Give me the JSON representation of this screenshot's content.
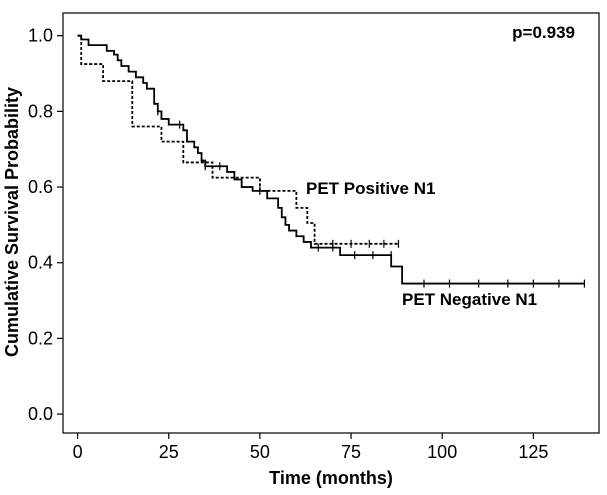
{
  "chart_data": {
    "type": "line",
    "subtype": "kaplan-meier step curve",
    "xlabel": "Time (months)",
    "ylabel": "Cumulative Survival Probability",
    "xlim": [
      -4,
      143
    ],
    "ylim": [
      -0.05,
      1.06
    ],
    "xticks": [
      0,
      25,
      50,
      75,
      100,
      125
    ],
    "yticks": [
      0.0,
      0.2,
      0.4,
      0.6,
      0.8,
      1.0
    ],
    "ytick_labels": [
      "0.0",
      "0.2",
      "0.4",
      "0.6",
      "0.8",
      "1.0"
    ],
    "grid": false,
    "annotations": {
      "pvalue": "p=0.939",
      "positive_label": "PET Positive N1",
      "negative_label": "PET Negative N1"
    },
    "series": [
      {
        "name": "PET Negative N1",
        "line_style": "solid",
        "steps": [
          [
            0,
            1.0
          ],
          [
            1,
            0.99
          ],
          [
            3,
            0.975
          ],
          [
            8,
            0.96
          ],
          [
            10,
            0.95
          ],
          [
            11,
            0.935
          ],
          [
            12,
            0.92
          ],
          [
            14,
            0.905
          ],
          [
            16,
            0.89
          ],
          [
            18,
            0.875
          ],
          [
            19,
            0.86
          ],
          [
            21,
            0.82
          ],
          [
            22,
            0.8
          ],
          [
            23,
            0.78
          ],
          [
            25,
            0.765
          ],
          [
            27,
            0.765
          ],
          [
            29,
            0.75
          ],
          [
            30,
            0.72
          ],
          [
            32,
            0.705
          ],
          [
            33,
            0.69
          ],
          [
            34,
            0.67
          ],
          [
            35,
            0.655
          ],
          [
            41,
            0.64
          ],
          [
            43,
            0.62
          ],
          [
            45,
            0.6
          ],
          [
            48,
            0.59
          ],
          [
            52,
            0.57
          ],
          [
            55,
            0.545
          ],
          [
            56,
            0.52
          ],
          [
            57,
            0.5
          ],
          [
            58,
            0.485
          ],
          [
            60,
            0.47
          ],
          [
            62,
            0.455
          ],
          [
            64,
            0.44
          ],
          [
            72,
            0.42
          ],
          [
            86,
            0.39
          ],
          [
            89,
            0.345
          ],
          [
            139,
            0.345
          ]
        ],
        "censored": [
          [
            22,
            0.8
          ],
          [
            28,
            0.765
          ],
          [
            35,
            0.655
          ],
          [
            39,
            0.655
          ],
          [
            50,
            0.59
          ],
          [
            66,
            0.44
          ],
          [
            70,
            0.44
          ],
          [
            76,
            0.42
          ],
          [
            81,
            0.42
          ],
          [
            86,
            0.42
          ],
          [
            95,
            0.345
          ],
          [
            102,
            0.345
          ],
          [
            110,
            0.345
          ],
          [
            118,
            0.345
          ],
          [
            125,
            0.345
          ],
          [
            132,
            0.345
          ],
          [
            139,
            0.345
          ]
        ]
      },
      {
        "name": "PET Positive N1",
        "line_style": "dotted",
        "steps": [
          [
            0,
            1.0
          ],
          [
            1,
            0.925
          ],
          [
            7,
            0.88
          ],
          [
            15,
            0.76
          ],
          [
            23,
            0.72
          ],
          [
            29,
            0.665
          ],
          [
            31,
            0.665
          ],
          [
            37,
            0.625
          ],
          [
            45,
            0.625
          ],
          [
            50,
            0.59
          ],
          [
            56,
            0.59
          ],
          [
            60,
            0.545
          ],
          [
            63,
            0.505
          ],
          [
            65,
            0.45
          ],
          [
            88,
            0.45
          ]
        ],
        "censored": [
          [
            70,
            0.45
          ],
          [
            75,
            0.45
          ],
          [
            80,
            0.45
          ],
          [
            84,
            0.45
          ],
          [
            88,
            0.45
          ]
        ]
      }
    ]
  }
}
